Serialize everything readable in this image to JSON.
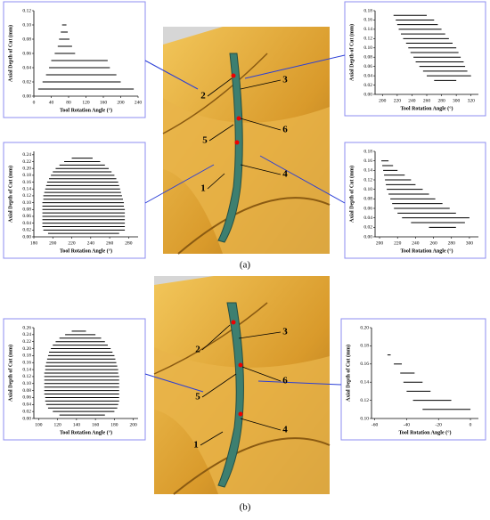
{
  "chart_data": [
    {
      "type": "range",
      "x_label": "Tool Rotation Angle (°)",
      "y_label": "Axial Depth of Cut (mm)",
      "xlim": [
        0,
        240
      ],
      "xticks": [
        0,
        40,
        80,
        120,
        160,
        200,
        240
      ],
      "ylim": [
        0,
        0.12
      ],
      "yticks": [
        {
          "value": 0,
          "label": "0.00"
        },
        {
          "value": 0.02,
          "label": "0.02"
        },
        {
          "value": 0.04,
          "label": "0.04"
        },
        {
          "value": 0.06,
          "label": "0.06"
        },
        {
          "value": 0.08,
          "label": "0.08"
        },
        {
          "value": 0.1,
          "label": "0.10"
        },
        {
          "value": 0.12,
          "label": "0.12"
        }
      ],
      "color": "#000000",
      "y": [
        0.1,
        0.09,
        0.08,
        0.07,
        0.06,
        0.05,
        0.04,
        0.03,
        0.02,
        0.01
      ],
      "x_start": [
        65,
        62,
        58,
        55,
        48,
        40,
        35,
        28,
        20,
        10
      ],
      "x_end": [
        75,
        78,
        82,
        88,
        95,
        170,
        175,
        190,
        200,
        230
      ]
    },
    {
      "type": "range",
      "x_label": "Tool Rotation Angle (°)",
      "y_label": "Axial Depth of Cut (mm)",
      "xlim": [
        190,
        330
      ],
      "xticks": [
        200,
        220,
        240,
        260,
        280,
        300,
        320
      ],
      "ylim": [
        0,
        0.18
      ],
      "yticks": [
        {
          "value": 0,
          "label": "0.00"
        },
        {
          "value": 0.02,
          "label": "0.02"
        },
        {
          "value": 0.04,
          "label": "0.04"
        },
        {
          "value": 0.06,
          "label": "0.06"
        },
        {
          "value": 0.08,
          "label": "0.08"
        },
        {
          "value": 0.1,
          "label": "0.10"
        },
        {
          "value": 0.12,
          "label": "0.12"
        },
        {
          "value": 0.14,
          "label": "0.14"
        },
        {
          "value": 0.16,
          "label": "0.16"
        },
        {
          "value": 0.18,
          "label": "0.18"
        }
      ],
      "color": "#000000",
      "y": [
        0.17,
        0.16,
        0.15,
        0.14,
        0.13,
        0.12,
        0.11,
        0.1,
        0.09,
        0.08,
        0.07,
        0.06,
        0.05,
        0.04,
        0.03
      ],
      "x_start": [
        215,
        218,
        220,
        222,
        225,
        228,
        232,
        235,
        238,
        242,
        245,
        250,
        255,
        260,
        270
      ],
      "x_end": [
        260,
        270,
        275,
        280,
        285,
        290,
        295,
        300,
        303,
        306,
        310,
        312,
        315,
        320,
        300
      ]
    },
    {
      "type": "range",
      "x_label": "Tool Rotation Angle (°)",
      "y_label": "Axial Depth of Cut (mm)",
      "xlim": [
        180,
        290
      ],
      "xticks": [
        180,
        200,
        220,
        240,
        260,
        280
      ],
      "ylim": [
        0,
        0.25
      ],
      "yticks": [
        {
          "value": 0,
          "label": "0.00"
        },
        {
          "value": 0.02,
          "label": "0.02"
        },
        {
          "value": 0.04,
          "label": "0.04"
        },
        {
          "value": 0.06,
          "label": "0.06"
        },
        {
          "value": 0.08,
          "label": "0.08"
        },
        {
          "value": 0.1,
          "label": "0.10"
        },
        {
          "value": 0.12,
          "label": "0.12"
        },
        {
          "value": 0.14,
          "label": "0.14"
        },
        {
          "value": 0.16,
          "label": "0.16"
        },
        {
          "value": 0.18,
          "label": "0.18"
        },
        {
          "value": 0.2,
          "label": "0.20"
        },
        {
          "value": 0.22,
          "label": "0.22"
        },
        {
          "value": 0.24,
          "label": "0.24"
        }
      ],
      "color": "#000000",
      "y": [
        0.23,
        0.22,
        0.21,
        0.2,
        0.19,
        0.18,
        0.17,
        0.16,
        0.15,
        0.14,
        0.13,
        0.12,
        0.11,
        0.1,
        0.09,
        0.08,
        0.07,
        0.06,
        0.05,
        0.04,
        0.03,
        0.02,
        0.01
      ],
      "x_start": [
        220,
        212,
        207,
        203,
        200,
        198,
        196,
        194,
        193,
        192,
        191,
        190,
        190,
        189,
        189,
        189,
        189,
        189,
        189,
        189,
        189,
        190,
        195
      ],
      "x_end": [
        242,
        250,
        255,
        259,
        262,
        265,
        267,
        269,
        270,
        271,
        272,
        273,
        274,
        275,
        275,
        276,
        276,
        276,
        276,
        276,
        276,
        276,
        270
      ]
    },
    {
      "type": "range",
      "x_label": "Tool Rotation Angle (°)",
      "y_label": "Axial Depth of Cut (mm)",
      "xlim": [
        195,
        310
      ],
      "xticks": [
        200,
        220,
        240,
        260,
        280,
        300
      ],
      "ylim": [
        0,
        0.18
      ],
      "yticks": [
        {
          "value": 0,
          "label": "0.00"
        },
        {
          "value": 0.02,
          "label": "0.02"
        },
        {
          "value": 0.04,
          "label": "0.04"
        },
        {
          "value": 0.06,
          "label": "0.06"
        },
        {
          "value": 0.08,
          "label": "0.08"
        },
        {
          "value": 0.1,
          "label": "0.10"
        },
        {
          "value": 0.12,
          "label": "0.12"
        },
        {
          "value": 0.14,
          "label": "0.14"
        },
        {
          "value": 0.16,
          "label": "0.16"
        },
        {
          "value": 0.18,
          "label": "0.18"
        }
      ],
      "color": "#000000",
      "y": [
        0.16,
        0.15,
        0.14,
        0.13,
        0.12,
        0.11,
        0.1,
        0.09,
        0.08,
        0.07,
        0.06,
        0.05,
        0.04,
        0.03,
        0.02
      ],
      "x_start": [
        202,
        203,
        204,
        205,
        206,
        207,
        208,
        210,
        212,
        214,
        216,
        220,
        225,
        235,
        255
      ],
      "x_end": [
        210,
        215,
        220,
        228,
        235,
        240,
        248,
        255,
        262,
        270,
        278,
        285,
        300,
        295,
        285
      ]
    },
    {
      "type": "range",
      "x_label": "Tool Rotation Angle (°)",
      "y_label": "Axial Depth of Cut (mm)",
      "xlim": [
        95,
        205
      ],
      "xticks": [
        100,
        120,
        140,
        160,
        180,
        200
      ],
      "ylim": [
        0,
        0.26
      ],
      "yticks": [
        {
          "value": 0,
          "label": "0.00"
        },
        {
          "value": 0.02,
          "label": "0.02"
        },
        {
          "value": 0.04,
          "label": "0.04"
        },
        {
          "value": 0.06,
          "label": "0.06"
        },
        {
          "value": 0.08,
          "label": "0.08"
        },
        {
          "value": 0.1,
          "label": "0.10"
        },
        {
          "value": 0.12,
          "label": "0.12"
        },
        {
          "value": 0.14,
          "label": "0.14"
        },
        {
          "value": 0.16,
          "label": "0.16"
        },
        {
          "value": 0.18,
          "label": "0.18"
        },
        {
          "value": 0.2,
          "label": "0.20"
        },
        {
          "value": 0.22,
          "label": "0.22"
        },
        {
          "value": 0.24,
          "label": "0.24"
        },
        {
          "value": 0.26,
          "label": "0.26"
        }
      ],
      "color": "#000000",
      "y": [
        0.25,
        0.24,
        0.23,
        0.22,
        0.21,
        0.2,
        0.19,
        0.18,
        0.17,
        0.16,
        0.15,
        0.14,
        0.13,
        0.12,
        0.11,
        0.1,
        0.09,
        0.08,
        0.07,
        0.06,
        0.05,
        0.04,
        0.03,
        0.02,
        0.01
      ],
      "x_start": [
        135,
        128,
        122,
        118,
        115,
        113,
        111,
        110,
        109,
        108,
        107,
        107,
        106,
        106,
        106,
        106,
        106,
        106,
        106,
        107,
        107,
        108,
        110,
        115,
        122
      ],
      "x_end": [
        150,
        160,
        166,
        170,
        173,
        176,
        178,
        180,
        181,
        182,
        183,
        184,
        184,
        185,
        185,
        185,
        185,
        185,
        185,
        185,
        185,
        184,
        183,
        180,
        170
      ]
    },
    {
      "type": "range",
      "x_label": "Tool Rotation Angle (°)",
      "y_label": "Axial Depth of Cut (mm)",
      "xlim": [
        -62,
        5
      ],
      "xticks": [
        -60,
        -40,
        -20,
        0
      ],
      "ylim": [
        0.1,
        0.2
      ],
      "yticks": [
        {
          "value": 0.1,
          "label": "0.10"
        },
        {
          "value": 0.12,
          "label": "0.12"
        },
        {
          "value": 0.14,
          "label": "0.14"
        },
        {
          "value": 0.16,
          "label": "0.16"
        },
        {
          "value": 0.18,
          "label": "0.18"
        },
        {
          "value": 0.2,
          "label": "0.20"
        }
      ],
      "color": "#000000",
      "y": [
        0.17,
        0.16,
        0.15,
        0.14,
        0.13,
        0.12,
        0.11
      ],
      "x_start": [
        -52,
        -48,
        -44,
        -42,
        -40,
        -36,
        -30
      ],
      "x_end": [
        -50,
        -43,
        -35,
        -30,
        -25,
        -12,
        0
      ]
    }
  ],
  "figure": {
    "panels": [
      "(a)",
      "(b)"
    ],
    "callouts_a": [
      "1",
      "2",
      "3",
      "4",
      "5",
      "6"
    ],
    "callouts_b": [
      "1",
      "2",
      "3",
      "4",
      "5",
      "6"
    ]
  }
}
